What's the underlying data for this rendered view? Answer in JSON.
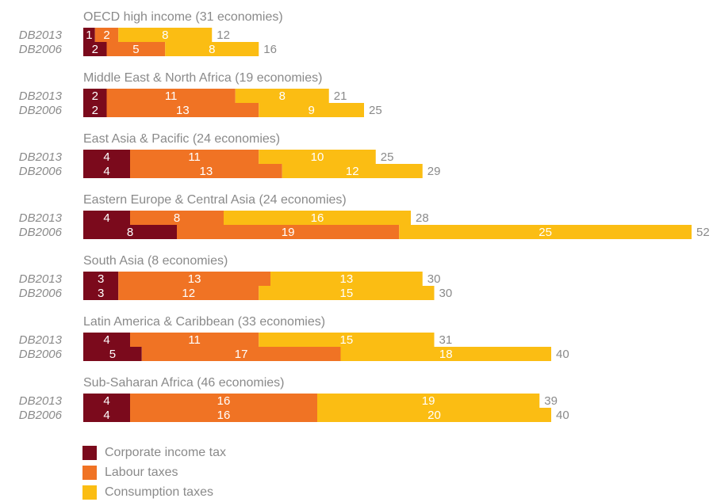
{
  "chart_data": {
    "type": "bar",
    "orientation": "horizontal",
    "stacked": true,
    "grid": false,
    "legend_placement": "bottom-left",
    "row_labels": [
      "DB2013",
      "DB2006"
    ],
    "colors": {
      "Corporate income tax": "#7b0a1c",
      "Labour taxes": "#f07324",
      "Consumption taxes": "#fbbd13",
      "label_text": "#8a8a8a"
    },
    "series": [
      {
        "name": "Corporate income tax"
      },
      {
        "name": "Labour taxes"
      },
      {
        "name": "Consumption taxes"
      }
    ],
    "groups": [
      {
        "label": "OECD high income (31 economies)",
        "rows": [
          {
            "row": "DB2013",
            "values": [
              1,
              2,
              8
            ],
            "total": 12
          },
          {
            "row": "DB2006",
            "values": [
              2,
              5,
              8
            ],
            "total": 16
          }
        ]
      },
      {
        "label": "Middle East & North Africa (19 economies)",
        "rows": [
          {
            "row": "DB2013",
            "values": [
              2,
              11,
              8
            ],
            "total": 21
          },
          {
            "row": "DB2006",
            "values": [
              2,
              13,
              9
            ],
            "total": 25
          }
        ]
      },
      {
        "label": "East Asia & Pacific (24 economies)",
        "rows": [
          {
            "row": "DB2013",
            "values": [
              4,
              11,
              10
            ],
            "total": 25
          },
          {
            "row": "DB2006",
            "values": [
              4,
              13,
              12
            ],
            "total": 29
          }
        ]
      },
      {
        "label": "Eastern Europe & Central Asia (24 economies)",
        "rows": [
          {
            "row": "DB2013",
            "values": [
              4,
              8,
              16
            ],
            "total": 28
          },
          {
            "row": "DB2006",
            "values": [
              8,
              19,
              25
            ],
            "total": 52
          }
        ]
      },
      {
        "label": "South Asia (8 economies)",
        "rows": [
          {
            "row": "DB2013",
            "values": [
              3,
              13,
              13
            ],
            "total": 30
          },
          {
            "row": "DB2006",
            "values": [
              3,
              12,
              15
            ],
            "total": 30
          }
        ]
      },
      {
        "label": "Latin America & Caribbean (33 economies)",
        "rows": [
          {
            "row": "DB2013",
            "values": [
              4,
              11,
              15
            ],
            "total": 31
          },
          {
            "row": "DB2006",
            "values": [
              5,
              17,
              18
            ],
            "total": 40
          }
        ]
      },
      {
        "label": "Sub-Saharan Africa (46 economies)",
        "rows": [
          {
            "row": "DB2013",
            "values": [
              4,
              16,
              19
            ],
            "total": 39
          },
          {
            "row": "DB2006",
            "values": [
              4,
              16,
              20
            ],
            "total": 40
          }
        ]
      }
    ]
  },
  "legend": {
    "items": [
      {
        "label": "Corporate income tax",
        "color": "#7b0a1c"
      },
      {
        "label": "Labour taxes",
        "color": "#f07324"
      },
      {
        "label": "Consumption taxes",
        "color": "#fbbd13"
      }
    ]
  }
}
